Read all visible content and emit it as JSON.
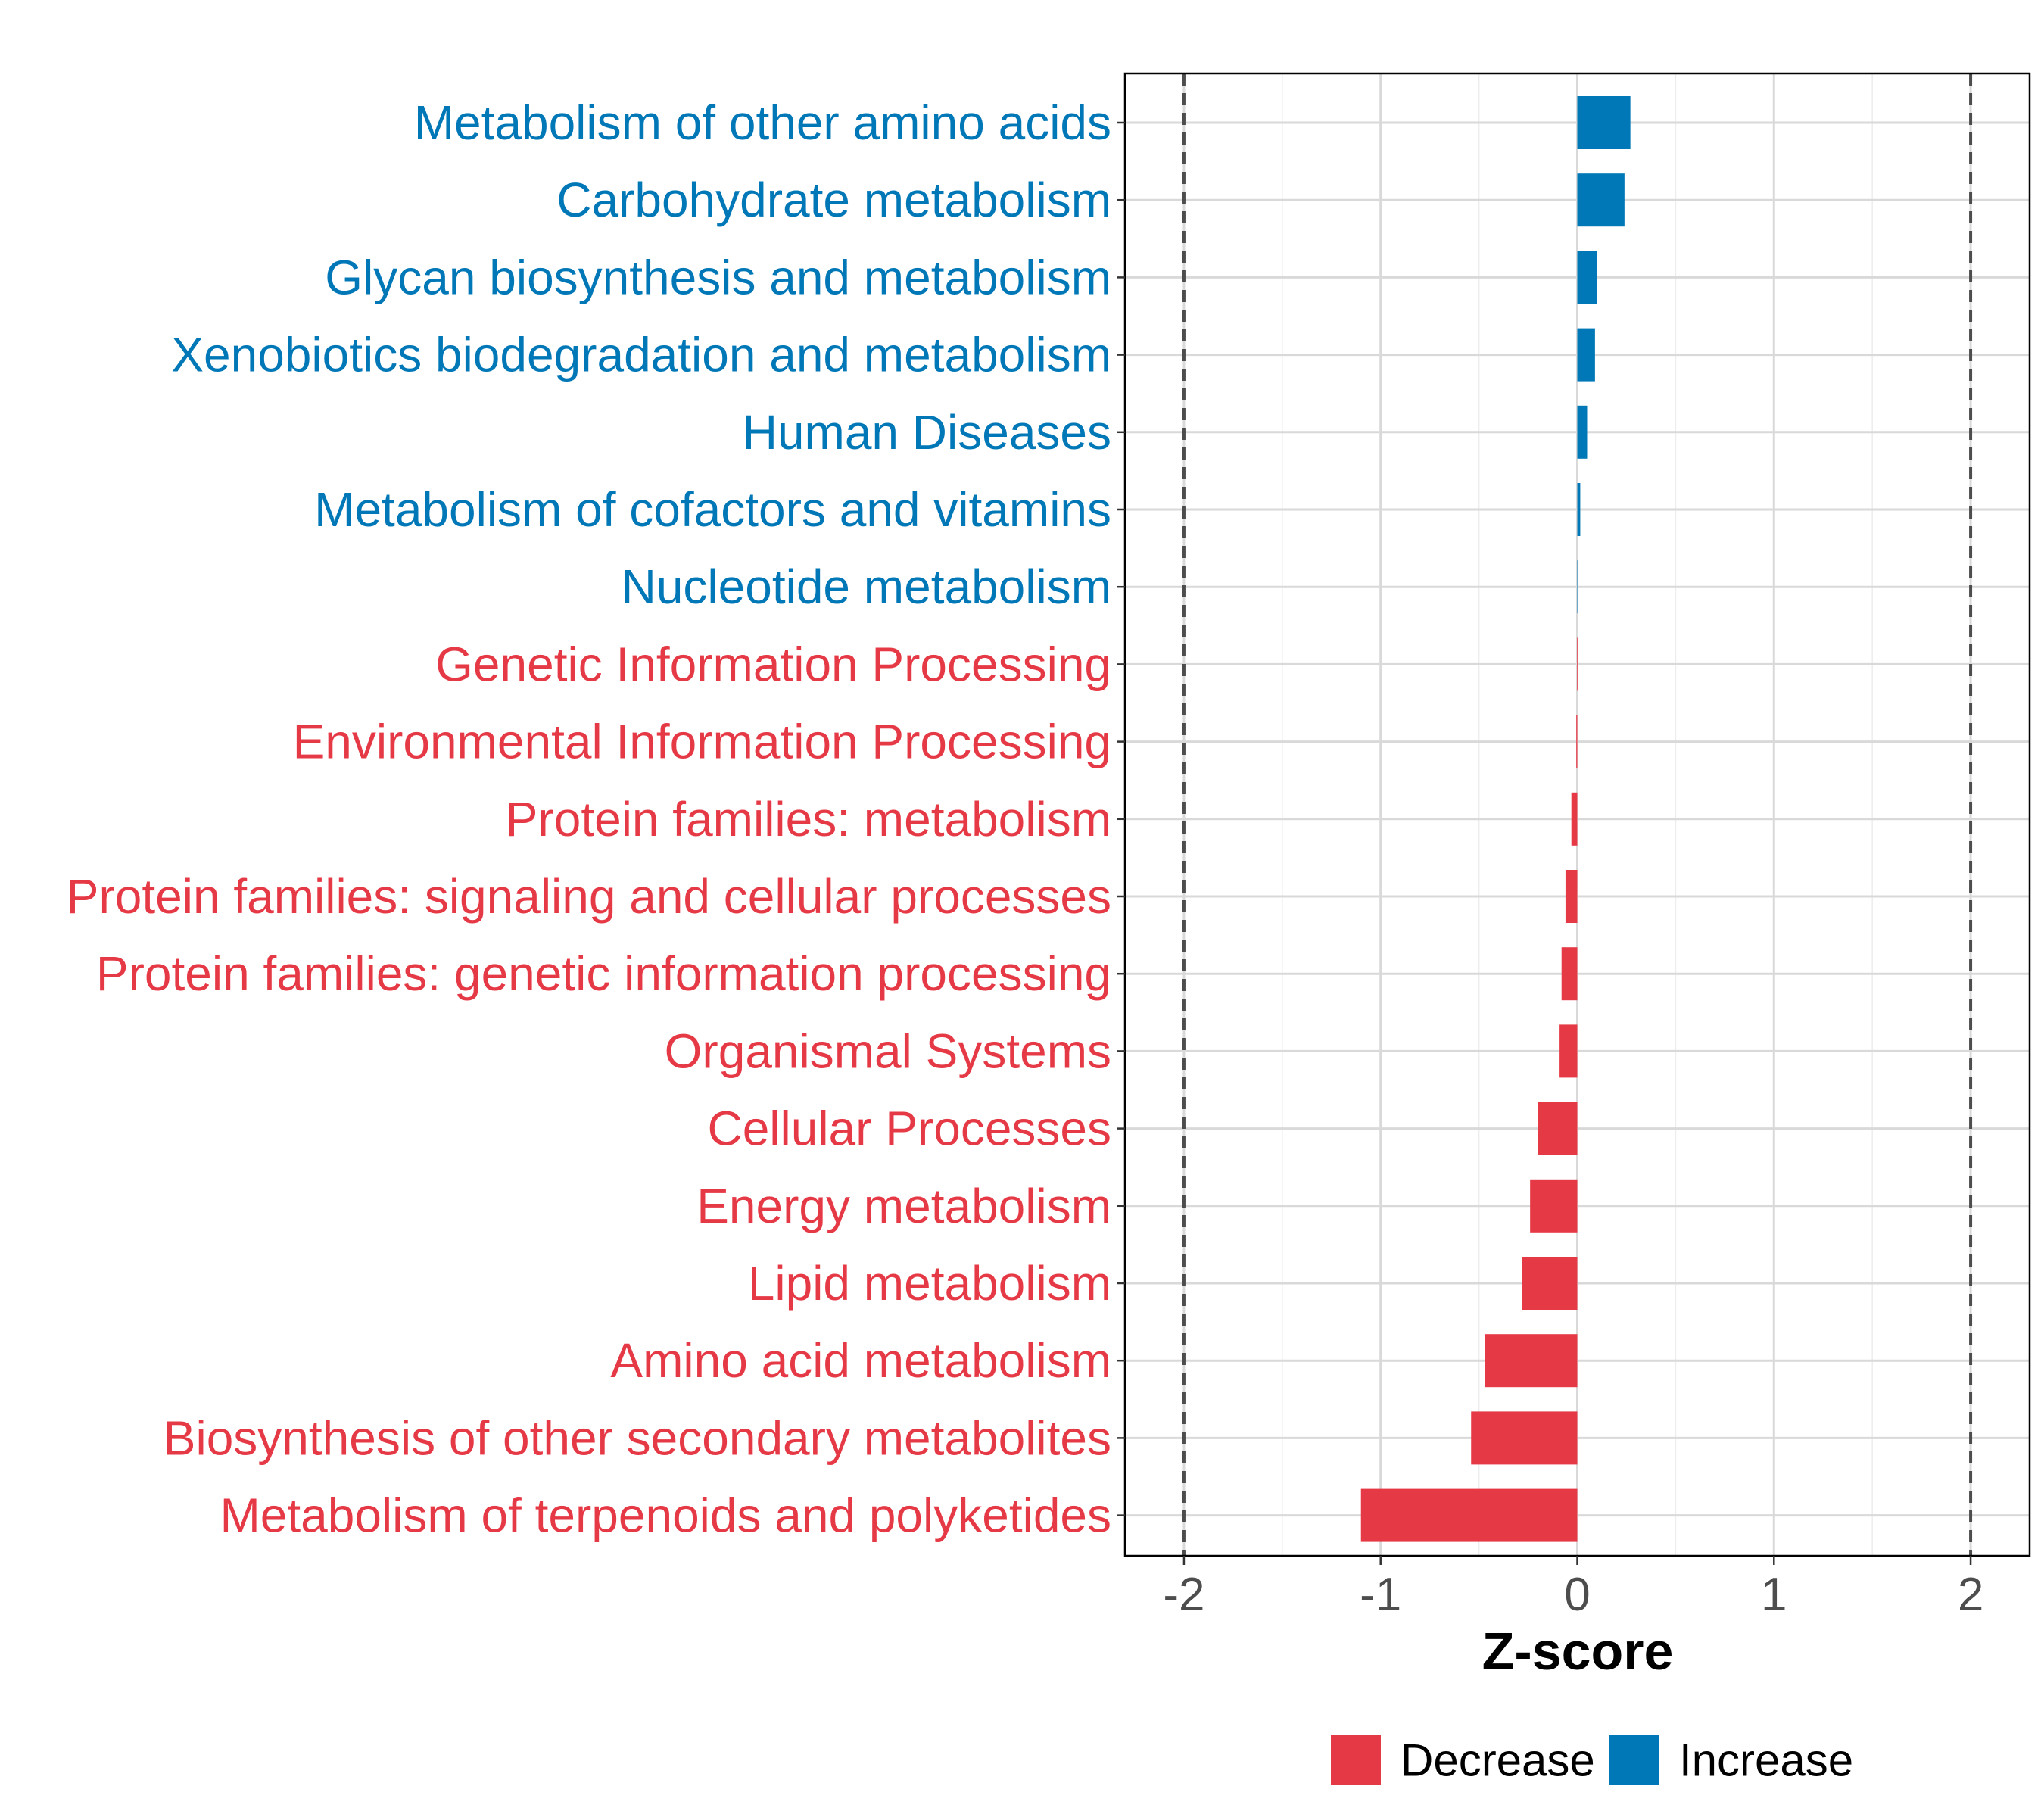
{
  "chart_data": {
    "type": "bar",
    "orientation": "horizontal",
    "xlabel": "Z-score",
    "xlim": [
      -2.3,
      2.3
    ],
    "xticks": [
      -2,
      -1,
      0,
      1,
      2
    ],
    "xtick_labels": [
      "-2",
      "-1",
      "0",
      "1",
      "2"
    ],
    "reference_lines": [
      -2,
      2
    ],
    "grid": true,
    "legend_position": "bottom",
    "legend": [
      {
        "name": "Decrease",
        "color": "#E63946"
      },
      {
        "name": "Increase",
        "color": "#0077B6"
      }
    ],
    "categories": [
      "Metabolism of other amino acids",
      "Carbohydrate metabolism",
      "Glycan biosynthesis and metabolism",
      "Xenobiotics biodegradation and metabolism",
      "Human Diseases",
      "Metabolism of cofactors and vitamins",
      "Nucleotide metabolism",
      "Genetic Information Processing",
      "Environmental Information Processing",
      "Protein families: metabolism",
      "Protein families: signaling and cellular processes",
      "Protein families: genetic information processing",
      "Organismal Systems",
      "Cellular Processes",
      "Energy metabolism",
      "Lipid metabolism",
      "Amino acid metabolism",
      "Biosynthesis of other secondary metabolites",
      "Metabolism of terpenoids and polyketides"
    ],
    "values": [
      0.27,
      0.24,
      0.1,
      0.09,
      0.05,
      0.015,
      0.005,
      -0.001,
      -0.005,
      -0.03,
      -0.06,
      -0.08,
      -0.09,
      -0.2,
      -0.24,
      -0.28,
      -0.47,
      -0.54,
      -1.1
    ],
    "groups": [
      "Increase",
      "Increase",
      "Increase",
      "Increase",
      "Increase",
      "Increase",
      "Increase",
      "Decrease",
      "Decrease",
      "Decrease",
      "Decrease",
      "Decrease",
      "Decrease",
      "Decrease",
      "Decrease",
      "Decrease",
      "Decrease",
      "Decrease",
      "Decrease"
    ]
  }
}
